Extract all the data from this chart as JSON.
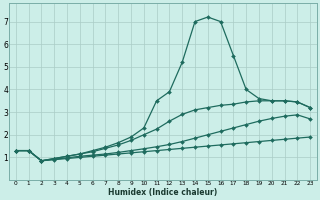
{
  "xlabel": "Humidex (Indice chaleur)",
  "bg_color": "#cceee8",
  "grid_color": "#aaccc6",
  "line_color": "#1e6b5e",
  "x_values": [
    0,
    1,
    2,
    3,
    4,
    5,
    6,
    7,
    8,
    9,
    10,
    11,
    12,
    13,
    14,
    15,
    16,
    17,
    18,
    19,
    20,
    21,
    22,
    23
  ],
  "line1_y": [
    1.3,
    1.3,
    0.85,
    0.9,
    0.95,
    1.0,
    1.05,
    1.1,
    1.15,
    1.2,
    1.25,
    1.3,
    1.35,
    1.4,
    1.45,
    1.5,
    1.55,
    1.6,
    1.65,
    1.7,
    1.75,
    1.8,
    1.85,
    1.9
  ],
  "line2_y": [
    1.3,
    1.3,
    0.85,
    0.92,
    0.98,
    1.05,
    1.1,
    1.15,
    1.22,
    1.3,
    1.38,
    1.47,
    1.57,
    1.7,
    1.85,
    2.0,
    2.15,
    2.3,
    2.45,
    2.6,
    2.72,
    2.82,
    2.88,
    2.7
  ],
  "line3_y": [
    1.3,
    1.3,
    0.85,
    0.95,
    1.05,
    1.15,
    1.25,
    1.4,
    1.55,
    1.75,
    2.0,
    2.25,
    2.6,
    2.9,
    3.1,
    3.2,
    3.3,
    3.35,
    3.45,
    3.5,
    3.5,
    3.5,
    3.45,
    3.2
  ],
  "line4_y": [
    1.3,
    1.3,
    0.85,
    0.95,
    1.05,
    1.15,
    1.3,
    1.45,
    1.65,
    1.9,
    2.3,
    3.5,
    3.9,
    5.2,
    7.0,
    7.2,
    7.0,
    5.5,
    4.0,
    3.6,
    3.5,
    3.5,
    3.45,
    3.2
  ],
  "ylim": [
    0,
    7.8
  ],
  "xlim": [
    -0.5,
    23.5
  ],
  "yticks": [
    1,
    2,
    3,
    4,
    5,
    6,
    7
  ],
  "xticks": [
    0,
    1,
    2,
    3,
    4,
    5,
    6,
    7,
    8,
    9,
    10,
    11,
    12,
    13,
    14,
    15,
    16,
    17,
    18,
    19,
    20,
    21,
    22,
    23
  ]
}
